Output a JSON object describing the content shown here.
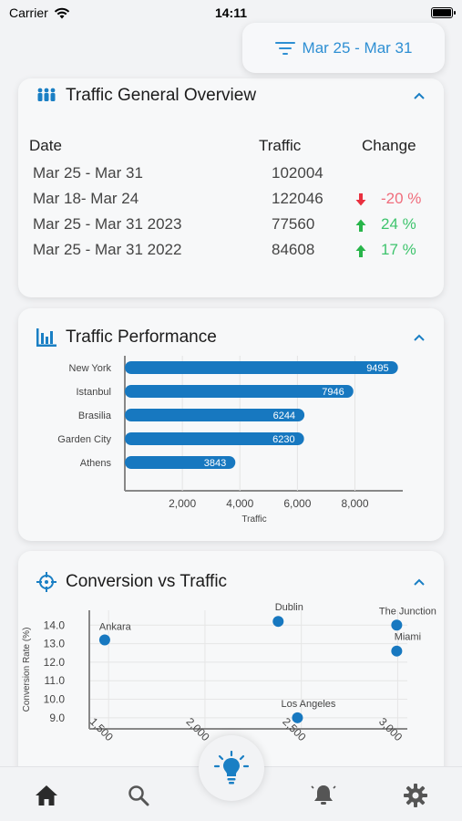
{
  "status_bar": {
    "carrier": "Carrier",
    "time": "14:11"
  },
  "date_filter": {
    "label": "Mar 25 -  Mar 31"
  },
  "overview": {
    "title": "Traffic General Overview",
    "headers": {
      "date": "Date",
      "traffic": "Traffic",
      "change": "Change"
    },
    "rows": [
      {
        "date": "Mar 25 - Mar 31",
        "traffic": "102004",
        "change": "",
        "direction": "none"
      },
      {
        "date": "Mar 18- Mar 24",
        "traffic": "122046",
        "change": "-20 %",
        "direction": "down"
      },
      {
        "date": "Mar 25 - Mar 31 2023",
        "traffic": "77560",
        "change": "24 %",
        "direction": "up"
      },
      {
        "date": "Mar 25 - Mar 31 2022",
        "traffic": "84608",
        "change": "17 %",
        "direction": "up"
      }
    ]
  },
  "performance": {
    "title": "Traffic Performance"
  },
  "conversion": {
    "title": "Conversion vs Traffic"
  },
  "colors": {
    "accent": "#1a7fc4",
    "bar": "#1778c0",
    "up": "#3ec46d",
    "down": "#f06d7c"
  },
  "tabs": [
    "home-icon",
    "search-icon",
    "lightbulb-icon",
    "bell-icon",
    "gear-icon"
  ],
  "chart_data": [
    {
      "type": "bar",
      "orientation": "horizontal",
      "categories": [
        "New York",
        "Istanbul",
        "Brasilia",
        "Garden City",
        "Athens"
      ],
      "values": [
        9495,
        7946,
        6244,
        6230,
        3843
      ],
      "xlabel": "Traffic",
      "ylabel": "",
      "xlim": [
        0,
        9600
      ],
      "xticks": [
        "2,000",
        "4,000",
        "6,000",
        "8,000"
      ],
      "data_labels": [
        "9495",
        "7946",
        "6244",
        "6230",
        "3843"
      ]
    },
    {
      "type": "scatter",
      "points": [
        {
          "label": "Ankara",
          "x": 1480,
          "y": 13.2
        },
        {
          "label": "Dublin",
          "x": 2380,
          "y": 14.2
        },
        {
          "label": "The Junction",
          "x": 2995,
          "y": 14.0
        },
        {
          "label": "Miami",
          "x": 2995,
          "y": 12.6
        },
        {
          "label": "Los Angeles",
          "x": 2480,
          "y": 9.0
        }
      ],
      "xlabel": "",
      "ylabel": "Conversion Rate (%)",
      "xlim": [
        1400,
        3050
      ],
      "ylim": [
        8.4,
        14.8
      ],
      "xticks": [
        "1,500",
        "2,000",
        "2,500",
        "3,000"
      ],
      "yticks": [
        "14.0",
        "13.0",
        "12.0",
        "11.0",
        "10.0",
        "9.0"
      ]
    }
  ]
}
